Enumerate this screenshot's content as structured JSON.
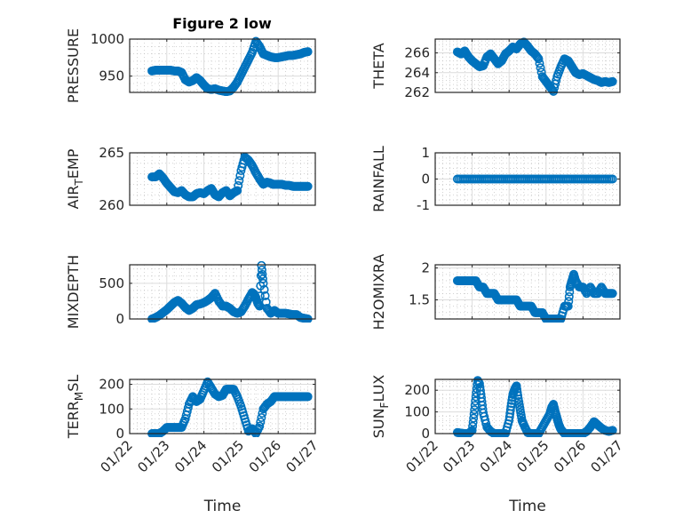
{
  "chart_data": {
    "type": "scatter",
    "title": "Figure 2 low",
    "layout": "4x2 grid of subplots",
    "marker": "open-circle",
    "marker_color": "#0072BD",
    "grid": "major and minor on",
    "x_axis": {
      "label": "Time",
      "range_days": [
        "01/22",
        "01/27"
      ],
      "tick_labels": [
        "01/22",
        "01/23",
        "01/24",
        "01/25",
        "01/26",
        "01/27"
      ],
      "tick_label_rotation": "45 degrees",
      "note": "x values are in days since 01/22 00:00"
    },
    "subplots": [
      {
        "id": "pressure",
        "ylabel": "PRESSURE",
        "ylabel_sub": "",
        "ylim": [
          928,
          1000
        ],
        "yticks": [
          950,
          1000
        ],
        "x": [
          0.6,
          0.7,
          0.8,
          0.9,
          1.0,
          1.1,
          1.2,
          1.3,
          1.4,
          1.5,
          1.6,
          1.7,
          1.8,
          1.9,
          2.0,
          2.1,
          2.2,
          2.3,
          2.4,
          2.5,
          2.6,
          2.7,
          2.8,
          2.9,
          3.0,
          3.1,
          3.2,
          3.3,
          3.4,
          3.5,
          3.6,
          3.7,
          3.8,
          3.9,
          4.0,
          4.1,
          4.2,
          4.3,
          4.4,
          4.5,
          4.6,
          4.7,
          4.8
        ],
        "y": [
          957,
          958,
          958,
          958,
          958,
          958,
          957,
          957,
          955,
          945,
          942,
          944,
          948,
          944,
          938,
          933,
          932,
          933,
          931,
          930,
          929,
          930,
          935,
          942,
          952,
          962,
          972,
          982,
          997,
          990,
          980,
          978,
          976,
          975,
          975,
          976,
          977,
          978,
          978,
          979,
          980,
          982,
          983
        ]
      },
      {
        "id": "theta",
        "ylabel": "THETA",
        "ylabel_sub": "",
        "ylim": [
          262,
          267.4
        ],
        "yticks": [
          262,
          264,
          266
        ],
        "x": [
          0.6,
          0.7,
          0.8,
          0.9,
          1.0,
          1.1,
          1.2,
          1.3,
          1.4,
          1.5,
          1.6,
          1.7,
          1.8,
          1.9,
          2.0,
          2.1,
          2.2,
          2.3,
          2.4,
          2.5,
          2.6,
          2.7,
          2.8,
          2.9,
          3.0,
          3.1,
          3.2,
          3.3,
          3.4,
          3.5,
          3.6,
          3.65,
          3.7,
          3.75,
          3.8,
          3.85,
          3.9,
          4.0,
          4.1,
          4.2,
          4.3,
          4.4,
          4.5,
          4.6,
          4.7,
          4.8
        ],
        "y": [
          266.1,
          265.9,
          266.2,
          265.6,
          265.2,
          264.9,
          264.6,
          264.7,
          265.6,
          265.9,
          265.4,
          264.9,
          265.2,
          265.9,
          266.2,
          266.6,
          266.4,
          266.9,
          267.1,
          266.7,
          266.2,
          265.9,
          265.4,
          263.6,
          263.1,
          262.6,
          262.1,
          263.6,
          264.6,
          265.4,
          265.2,
          264.9,
          264.6,
          264.3,
          264.0,
          263.9,
          263.8,
          263.9,
          263.7,
          263.5,
          263.3,
          263.2,
          263.0,
          263.1,
          263.0,
          263.1
        ]
      },
      {
        "id": "air_temp",
        "ylabel": "AIR",
        "ylabel_sub": "T",
        "ylabel_rest": "EMP",
        "ylim": [
          260,
          265
        ],
        "yticks": [
          260,
          265
        ],
        "x": [
          0.6,
          0.7,
          0.8,
          0.9,
          1.0,
          1.1,
          1.2,
          1.3,
          1.4,
          1.5,
          1.6,
          1.7,
          1.8,
          1.9,
          2.0,
          2.1,
          2.2,
          2.3,
          2.4,
          2.5,
          2.6,
          2.7,
          2.8,
          2.9,
          3.0,
          3.1,
          3.2,
          3.3,
          3.4,
          3.5,
          3.6,
          3.7,
          3.8,
          3.85,
          3.9,
          4.0,
          4.1,
          4.2,
          4.3,
          4.4,
          4.5,
          4.6,
          4.7,
          4.8
        ],
        "y": [
          262.7,
          262.7,
          263.0,
          262.6,
          262.1,
          261.7,
          261.3,
          261.2,
          261.4,
          261.0,
          260.8,
          260.8,
          261.1,
          261.2,
          261.1,
          261.4,
          261.6,
          261.0,
          260.8,
          261.2,
          261.4,
          260.9,
          261.2,
          261.4,
          263.3,
          264.6,
          264.3,
          263.8,
          263.1,
          262.5,
          262.0,
          262.2,
          262.1,
          262.0,
          262.0,
          262.0,
          262.0,
          261.9,
          261.9,
          261.8,
          261.8,
          261.8,
          261.8,
          261.8
        ]
      },
      {
        "id": "rainfall",
        "ylabel": "RAINFALL",
        "ylabel_sub": "",
        "ylim": [
          -1,
          1
        ],
        "yticks": [
          -1,
          0,
          1
        ],
        "x": [
          0.6,
          0.8,
          1.0,
          1.2,
          1.4,
          1.6,
          1.8,
          2.0,
          2.2,
          2.4,
          2.6,
          2.8,
          3.0,
          3.2,
          3.4,
          3.6,
          3.8,
          4.0,
          4.2,
          4.4,
          4.6,
          4.8
        ],
        "y": [
          0,
          0,
          0,
          0,
          0,
          0,
          0,
          0,
          0,
          0,
          0,
          0,
          0,
          0,
          0,
          0,
          0,
          0,
          0,
          0,
          0,
          0
        ]
      },
      {
        "id": "mixdepth",
        "ylabel": "MIXDEPTH",
        "ylabel_sub": "",
        "ylim": [
          0,
          760
        ],
        "yticks": [
          0,
          500
        ],
        "x": [
          0.6,
          0.7,
          0.8,
          0.9,
          1.0,
          1.1,
          1.2,
          1.3,
          1.4,
          1.5,
          1.6,
          1.7,
          1.8,
          1.9,
          2.0,
          2.1,
          2.2,
          2.3,
          2.4,
          2.5,
          2.6,
          2.7,
          2.8,
          2.9,
          3.0,
          3.1,
          3.2,
          3.3,
          3.35,
          3.4,
          3.45,
          3.5,
          3.55,
          3.6,
          3.7,
          3.8,
          3.9,
          4.0,
          4.1,
          4.2,
          4.3,
          4.4,
          4.5,
          4.6,
          4.7,
          4.8
        ],
        "y": [
          0,
          20,
          50,
          90,
          130,
          180,
          230,
          260,
          220,
          160,
          120,
          150,
          200,
          210,
          230,
          260,
          300,
          360,
          250,
          180,
          180,
          150,
          100,
          80,
          100,
          180,
          280,
          370,
          350,
          300,
          220,
          180,
          750,
          500,
          150,
          80,
          120,
          80,
          80,
          80,
          70,
          60,
          60,
          20,
          10,
          0
        ]
      },
      {
        "id": "h2omixra",
        "ylabel": "H2OMIXRA",
        "ylabel_sub": "",
        "ylim": [
          1.2,
          2.05
        ],
        "yticks": [
          1.5,
          2
        ],
        "x": [
          0.6,
          0.7,
          0.8,
          0.9,
          1.0,
          1.1,
          1.2,
          1.3,
          1.4,
          1.5,
          1.6,
          1.7,
          1.8,
          1.9,
          2.0,
          2.1,
          2.2,
          2.3,
          2.4,
          2.5,
          2.6,
          2.7,
          2.8,
          2.9,
          3.0,
          3.1,
          3.2,
          3.3,
          3.4,
          3.5,
          3.55,
          3.6,
          3.65,
          3.7,
          3.75,
          3.8,
          3.9,
          4.0,
          4.1,
          4.2,
          4.3,
          4.4,
          4.5,
          4.6,
          4.7,
          4.8
        ],
        "y": [
          1.8,
          1.8,
          1.8,
          1.8,
          1.8,
          1.8,
          1.7,
          1.7,
          1.6,
          1.6,
          1.6,
          1.5,
          1.5,
          1.5,
          1.5,
          1.5,
          1.5,
          1.4,
          1.4,
          1.4,
          1.4,
          1.3,
          1.3,
          1.3,
          1.2,
          1.2,
          1.2,
          1.2,
          1.2,
          1.4,
          1.4,
          1.4,
          1.7,
          1.8,
          1.9,
          1.8,
          1.7,
          1.7,
          1.6,
          1.7,
          1.6,
          1.6,
          1.7,
          1.6,
          1.6,
          1.6
        ]
      },
      {
        "id": "terr_msl",
        "ylabel": "TERR",
        "ylabel_sub": "M",
        "ylabel_rest": "SL",
        "ylim": [
          0,
          220
        ],
        "yticks": [
          0,
          100,
          200
        ],
        "x": [
          0.6,
          0.7,
          0.8,
          0.9,
          1.0,
          1.1,
          1.2,
          1.3,
          1.4,
          1.5,
          1.6,
          1.7,
          1.8,
          1.9,
          2.0,
          2.1,
          2.2,
          2.3,
          2.4,
          2.5,
          2.6,
          2.7,
          2.8,
          2.9,
          3.0,
          3.1,
          3.2,
          3.3,
          3.4,
          3.5,
          3.6,
          3.7,
          3.8,
          3.9,
          4.0,
          4.1,
          4.2,
          4.3,
          4.4,
          4.5,
          4.6,
          4.7,
          4.8
        ],
        "y": [
          0,
          0,
          0,
          10,
          25,
          25,
          25,
          25,
          25,
          60,
          120,
          150,
          130,
          140,
          175,
          210,
          185,
          160,
          150,
          155,
          180,
          180,
          180,
          150,
          110,
          60,
          10,
          20,
          0,
          30,
          100,
          120,
          130,
          150,
          150,
          150,
          150,
          150,
          150,
          150,
          150,
          150,
          150
        ]
      },
      {
        "id": "sun_flux",
        "ylabel": "SUN",
        "ylabel_sub": "F",
        "ylabel_rest": "LUX",
        "ylim": [
          0,
          250
        ],
        "yticks": [
          0,
          100,
          200
        ],
        "x": [
          0.6,
          0.7,
          0.8,
          0.9,
          1.0,
          1.05,
          1.1,
          1.15,
          1.2,
          1.25,
          1.3,
          1.4,
          1.5,
          1.6,
          1.7,
          1.8,
          1.9,
          2.0,
          2.05,
          2.1,
          2.15,
          2.2,
          2.25,
          2.3,
          2.35,
          2.4,
          2.5,
          2.6,
          2.7,
          2.8,
          2.9,
          3.0,
          3.1,
          3.15,
          3.2,
          3.25,
          3.3,
          3.35,
          3.4,
          3.5,
          3.6,
          3.7,
          3.8,
          3.9,
          4.0,
          4.1,
          4.2,
          4.3,
          4.4,
          4.5,
          4.6,
          4.7,
          4.8
        ],
        "y": [
          5,
          2,
          0,
          0,
          15,
          90,
          170,
          245,
          230,
          165,
          95,
          30,
          10,
          0,
          0,
          0,
          0,
          60,
          125,
          180,
          205,
          220,
          160,
          110,
          60,
          40,
          5,
          0,
          0,
          0,
          30,
          60,
          90,
          120,
          135,
          100,
          70,
          40,
          20,
          0,
          0,
          0,
          0,
          0,
          0,
          10,
          30,
          55,
          40,
          25,
          15,
          10,
          15
        ]
      }
    ]
  }
}
